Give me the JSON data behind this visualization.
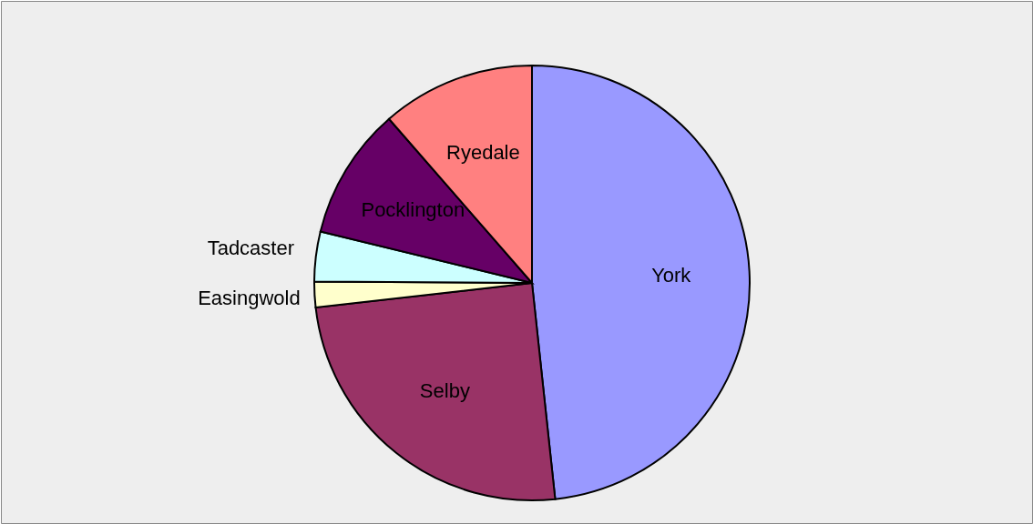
{
  "chart_data": {
    "type": "pie",
    "categories": [
      "York",
      "Selby",
      "Easingwold",
      "Tadcaster",
      "Pocklington",
      "Ryedale"
    ],
    "values": [
      48.3,
      24.9,
      1.9,
      3.7,
      9.8,
      11.4
    ],
    "colors": [
      "#9999ff",
      "#993366",
      "#ffffcc",
      "#ccffff",
      "#660066",
      "#ff8080"
    ]
  }
}
